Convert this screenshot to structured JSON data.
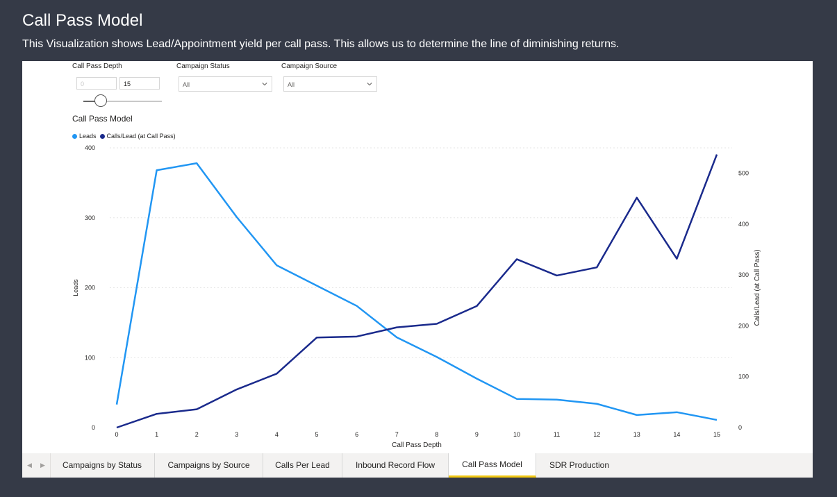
{
  "header": {
    "title": "Call Pass Model",
    "subtitle": "This Visualization shows Lead/Appointment yield per call pass. This allows us to determine the line of diminishing returns."
  },
  "filters": {
    "call_pass_depth": {
      "label": "Call Pass Depth",
      "min_value": "0",
      "max_value": "15"
    },
    "campaign_status": {
      "label": "Campaign Status",
      "value": "All"
    },
    "campaign_source": {
      "label": "Campaign Source",
      "value": "All"
    }
  },
  "visual": {
    "title": "Call Pass Model",
    "legend": [
      {
        "label": "Leads",
        "color": "#2196f3"
      },
      {
        "label": "Calls/Lead (at Call Pass)",
        "color": "#1a2a8c"
      }
    ]
  },
  "chart_data": {
    "type": "line",
    "x": [
      0,
      1,
      2,
      3,
      4,
      5,
      6,
      7,
      8,
      9,
      10,
      11,
      12,
      13,
      14,
      15
    ],
    "xlabel": "Call Pass Depth",
    "ylabel": "Leads",
    "y2label": "Calls/Lead (at Call Pass)",
    "ylim": [
      0,
      400
    ],
    "y2lim": [
      0,
      550
    ],
    "yticks": [
      0,
      100,
      200,
      300,
      400
    ],
    "y2ticks": [
      0,
      100,
      200,
      300,
      400,
      500
    ],
    "grid": true,
    "legend_position": "top-left",
    "series": [
      {
        "name": "Leads",
        "axis": "left",
        "color": "#2196f3",
        "values": [
          33,
          368,
          378,
          301,
          232,
          203,
          174,
          129,
          101,
          70,
          41,
          40,
          34,
          18,
          22,
          11
        ]
      },
      {
        "name": "Calls/Lead (at Call Pass)",
        "axis": "right",
        "color": "#1a2a8c",
        "values": [
          0,
          27,
          36,
          75,
          106,
          177,
          179,
          197,
          204,
          239,
          331,
          299,
          315,
          452,
          332,
          537
        ]
      }
    ]
  },
  "tabs": [
    {
      "label": "Campaigns by Status"
    },
    {
      "label": "Campaigns by Source"
    },
    {
      "label": "Calls Per Lead"
    },
    {
      "label": "Inbound Record Flow"
    },
    {
      "label": "Call Pass Model",
      "active": true
    },
    {
      "label": "SDR Production"
    }
  ]
}
